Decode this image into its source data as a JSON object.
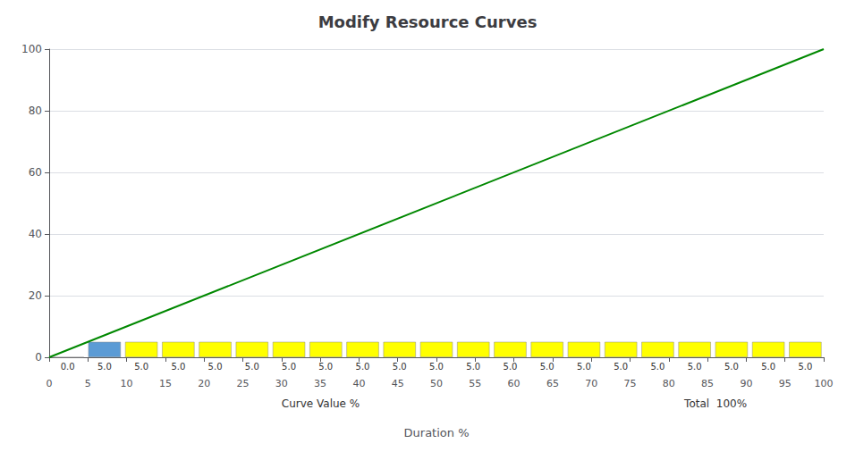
{
  "chart_data": {
    "type": "bar",
    "title": "Modify Resource Curves",
    "x_label": "Duration %",
    "annotations": [
      "Curve Value %",
      "Total  100%"
    ],
    "xlim": [
      0,
      100
    ],
    "xticks": [
      0,
      5,
      10,
      15,
      20,
      25,
      30,
      35,
      40,
      45,
      50,
      55,
      60,
      65,
      70,
      75,
      80,
      85,
      90,
      95,
      100
    ],
    "ylim": [
      0,
      100
    ],
    "yticks": [
      0,
      20,
      40,
      60,
      80,
      100
    ],
    "grid": true,
    "series": [
      {
        "type": "bar",
        "color": "#ffff00",
        "colors": [
          "#ffff00",
          "#5b9bd5",
          "#ffff00",
          "#ffff00",
          "#ffff00",
          "#ffff00",
          "#ffff00",
          "#ffff00",
          "#ffff00",
          "#ffff00",
          "#ffff00",
          "#ffff00",
          "#ffff00",
          "#ffff00",
          "#ffff00",
          "#ffff00",
          "#ffff00",
          "#ffff00",
          "#ffff00",
          "#ffff00",
          "#ffff00"
        ],
        "values": [
          0.0,
          5.0,
          5.0,
          5.0,
          5.0,
          5.0,
          5.0,
          5.0,
          5.0,
          5.0,
          5.0,
          5.0,
          5.0,
          5.0,
          5.0,
          5.0,
          5.0,
          5.0,
          5.0,
          5.0,
          5.0
        ],
        "value_labels": [
          "0.0",
          "5.0",
          "5.0",
          "5.0",
          "5.0",
          "5.0",
          "5.0",
          "5.0",
          "5.0",
          "5.0",
          "5.0",
          "5.0",
          "5.0",
          "5.0",
          "5.0",
          "5.0",
          "5.0",
          "5.0",
          "5.0",
          "5.0",
          "5.0"
        ],
        "data_labels": true
      },
      {
        "type": "line",
        "color": "#008800",
        "line_style": "solid",
        "x": [
          0,
          100
        ],
        "values": [
          0,
          100
        ]
      }
    ]
  }
}
